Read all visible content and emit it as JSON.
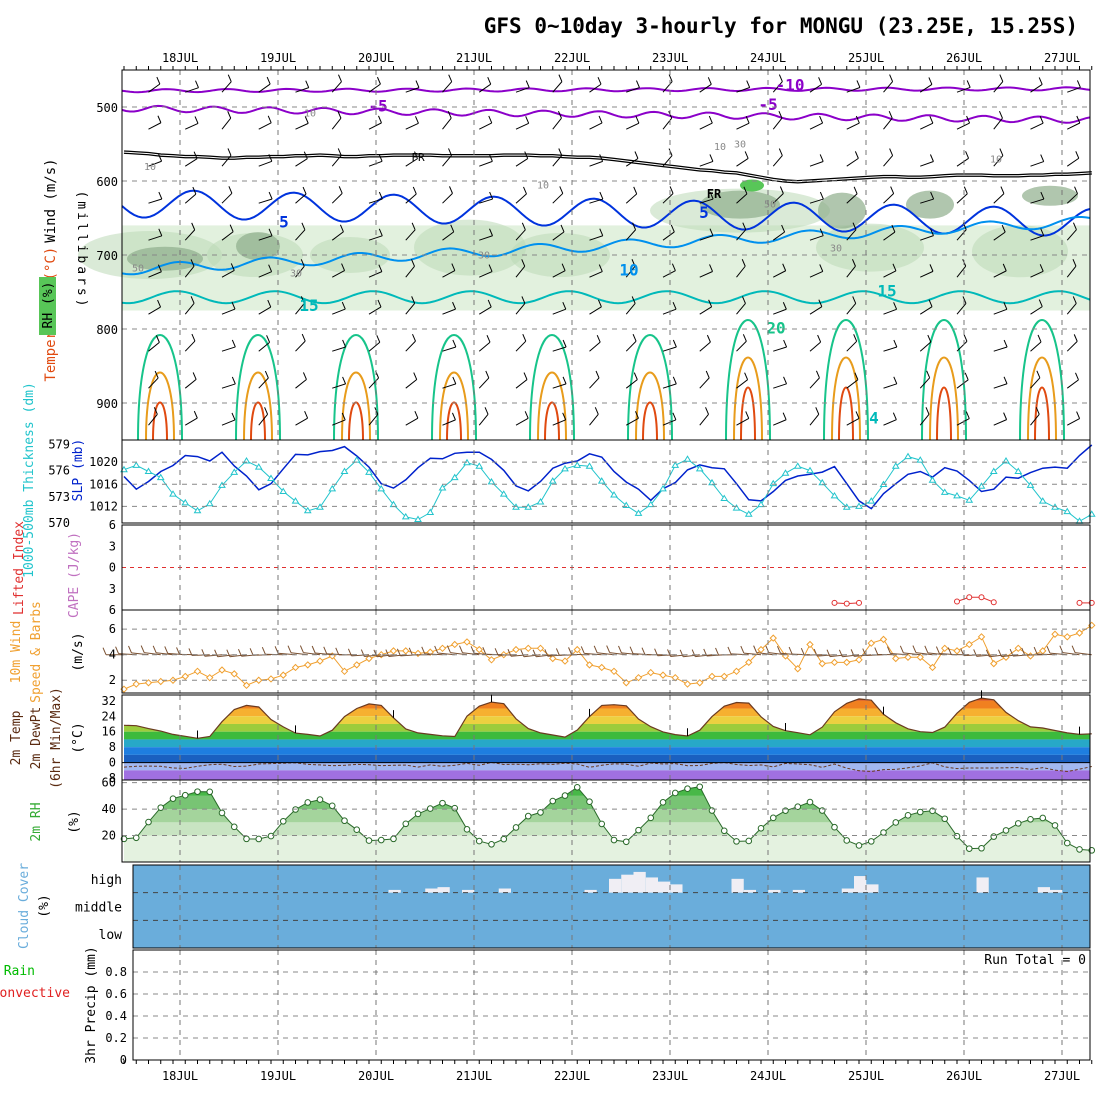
{
  "title": "GFS 0~10day 3-hourly for MONGU (23.25E, 15.25S)",
  "colors": {
    "wind_barb": "#000000",
    "rh_light": "#e2f1de",
    "rh_mid": "#bcd8b6",
    "rh_dark": "#8fae8c",
    "rh_high": "#58c658",
    "temp_purple": "#8b00c9",
    "temp_blue": "#0033dd",
    "temp_lightblue": "#0090ee",
    "temp_cyan": "#00b9b9",
    "temp_green": "#17c48a",
    "temp_orange": "#e89c1c",
    "temp_red": "#e04a10",
    "fr_line": "#000000",
    "slp": "#0022cc",
    "thickness": "#22c4cc",
    "lifted": "#e03030",
    "cape": "#c070c0",
    "wind10": "#f0a030",
    "windbarb10": "#7a5030",
    "rh2m": "#33aa33",
    "cloud": "#6aaddb",
    "precip": "#00bb00"
  },
  "chart_data": {
    "x_axis": {
      "day_labels": [
        "18JUL",
        "19JUL",
        "20JUL",
        "21JUL",
        "22JUL",
        "23JUL",
        "24JUL",
        "25JUL",
        "26JUL",
        "27JUL"
      ],
      "start": "17JUL 12Z",
      "step_hours": 3,
      "n_steps": 80
    },
    "panels": [
      {
        "id": "upper_air",
        "type": "contour",
        "ylabel_parts": [
          "Wind (m/s)",
          "Temperature (°C)",
          "RH (%)"
        ],
        "unit_label": "(millibars)",
        "y_ticks": [
          500,
          600,
          700,
          800,
          900
        ],
        "ylim": [
          450,
          950
        ],
        "temperature_contour_labels": [
          "-10",
          "-5",
          "-5",
          "5",
          "5",
          "10",
          "15",
          "15",
          "20",
          "4"
        ],
        "rh_contour_labels": [
          "10",
          "10",
          "10",
          "10",
          "30",
          "30",
          "30",
          "30",
          "50",
          "50",
          "10"
        ],
        "freezing_label": "FR",
        "freezing_level_mb": [
          561,
          562,
          563,
          565,
          566,
          567,
          567,
          568,
          569,
          569,
          568,
          568,
          567,
          567,
          566,
          566,
          565,
          566,
          567,
          567,
          566,
          566,
          565,
          565,
          565,
          565,
          566,
          566,
          566,
          566,
          566,
          565,
          565,
          565,
          566,
          566,
          567,
          568,
          568,
          569,
          571,
          573,
          575,
          577,
          579,
          581,
          583,
          585,
          586,
          588,
          589,
          592,
          595,
          598,
          600,
          601,
          600,
          599,
          598,
          597,
          596,
          595,
          594,
          594,
          595,
          595,
          594,
          593,
          592,
          592,
          592,
          593,
          593,
          593,
          592,
          592,
          591,
          591,
          590,
          589
        ]
      },
      {
        "id": "slp_thickness",
        "type": "line",
        "ylabel": "SLP (mb)",
        "ylabel2": "1000-500mb Thickness (dm)",
        "y_ticks": [
          1012,
          1016,
          1020
        ],
        "ylim": [
          1009,
          1024
        ],
        "y2_ticks": [
          570,
          573,
          576,
          579
        ],
        "y2lim": [
          570,
          579.5
        ],
        "series": [
          {
            "name": "SLP",
            "values": [
              1017.4,
              1015.1,
              1016.5,
              1018.3,
              1019.4,
              1021.2,
              1021.0,
              1020.2,
              1021.8,
              1019.3,
              1017.5,
              1015.0,
              1016.1,
              1018.8,
              1021.4,
              1021.3,
              1021.9,
              1022.1,
              1022.8,
              1021.1,
              1019.1,
              1016.1,
              1015.3,
              1016.8,
              1019.0,
              1020.7,
              1020.6,
              1021.6,
              1021.8,
              1021.8,
              1020.5,
              1018.5,
              1015.7,
              1014.8,
              1016.5,
              1018.9,
              1019.8,
              1020.2,
              1021.5,
              1020.9,
              1018.3,
              1016.4,
              1015.1,
              1013.1,
              1015.2,
              1016.3,
              1018.6,
              1019.5,
              1019.0,
              1018.8,
              1016.1,
              1013.2,
              1013.0,
              1014.7,
              1016.7,
              1017.5,
              1017.8,
              1018.2,
              1019.2,
              1016.1,
              1013.0,
              1011.6,
              1014.3,
              1016.1,
              1017.8,
              1018.3,
              1017.3,
              1019.0,
              1018.4,
              1016.7,
              1014.7,
              1015.1,
              1017.3,
              1017.1,
              1018.1,
              1018.9,
              1019.1,
              1018.9,
              1021.2,
              1023.1
            ]
          },
          {
            "name": "Thickness",
            "values": [
              576.1,
              576.6,
              575.9,
              575.2,
              573.3,
              572.3,
              571.4,
              572.2,
              574.3,
              575.8,
              577.1,
              576.4,
              575.1,
              573.6,
              572.5,
              571.4,
              571.8,
              573.9,
              575.9,
              577.2,
              575.8,
              573.9,
              572.1,
              570.7,
              570.4,
              571.2,
              574.0,
              575.2,
              576.9,
              576.5,
              574.7,
              573.3,
              571.8,
              571.8,
              572.4,
              574.8,
              576.2,
              576.6,
              576.5,
              574.8,
              573.2,
              572.0,
              571.1,
              572.1,
              573.9,
              576.6,
              577.3,
              576.2,
              574.6,
              572.8,
              571.7,
              571.0,
              572.1,
              574.5,
              575.7,
              576.5,
              576.0,
              574.6,
              573.1,
              571.8,
              571.9,
              572.5,
              574.4,
              576.5,
              577.6,
              577.2,
              574.9,
              573.5,
              573.1,
              572.6,
              574.2,
              575.9,
              577.1,
              575.9,
              574.3,
              572.5,
              571.8,
              571.3,
              570.2,
              571.0
            ]
          }
        ]
      },
      {
        "id": "lifted_cape",
        "type": "line",
        "ylabel": "Lifted Index",
        "ylabel2": "CAPE (J/kg)",
        "y_ticks": [
          -6,
          -3,
          0,
          3,
          6
        ],
        "ylim": [
          -6,
          6
        ],
        "zero_line": 0,
        "series": [
          {
            "name": "Lifted Index (visible positive excursions)",
            "segments": [
              {
                "start_index": 58,
                "values": [
                  5.0,
                  5.1,
                  5.0
                ]
              },
              {
                "start_index": 68,
                "values": [
                  4.8,
                  4.2,
                  4.2,
                  4.9
                ]
              },
              {
                "start_index": 78,
                "values": [
                  5.0,
                  5.0
                ]
              }
            ]
          }
        ]
      },
      {
        "id": "wind10m",
        "type": "line",
        "ylabel": "10m Wind",
        "ylabel2": "Speed & Barbs",
        "unit": "(m/s)",
        "y_ticks": [
          2,
          4,
          6
        ],
        "ylim": [
          1,
          7.5
        ],
        "series": [
          {
            "name": "10m Wind Speed",
            "values": [
              1.3,
              1.7,
              1.8,
              1.9,
              2.0,
              2.3,
              2.7,
              2.2,
              2.8,
              2.5,
              1.6,
              2.0,
              2.1,
              2.4,
              3.0,
              3.2,
              3.5,
              3.9,
              2.7,
              3.2,
              3.7,
              4.0,
              4.3,
              4.3,
              4.1,
              4.2,
              4.5,
              4.8,
              5.0,
              4.4,
              3.6,
              4.0,
              4.4,
              4.5,
              4.5,
              3.7,
              3.5,
              4.4,
              3.2,
              3.0,
              2.7,
              1.8,
              2.2,
              2.6,
              2.4,
              2.2,
              1.7,
              1.8,
              2.3,
              2.3,
              2.7,
              3.4,
              4.4,
              5.3,
              3.9,
              2.9,
              4.8,
              3.3,
              3.4,
              3.4,
              3.6,
              4.9,
              5.2,
              3.7,
              3.8,
              3.8,
              3.0,
              4.5,
              4.3,
              4.8,
              5.4,
              3.3,
              3.8,
              4.5,
              3.9,
              4.3,
              5.6,
              5.4,
              5.7,
              6.3
            ]
          }
        ]
      },
      {
        "id": "temp2m",
        "type": "area",
        "ylabel": "2m Temp",
        "ylabel2": "2m DewPt",
        "ylabel3": "(6hr Min/Max)",
        "unit": "(°C)",
        "y_ticks": [
          -8,
          0,
          8,
          16,
          24,
          32
        ],
        "ylim": [
          -9,
          35
        ],
        "series": [
          {
            "name": "2m Temp",
            "values": [
              19.3,
              19.1,
              17.6,
              16.3,
              14.6,
              13.6,
              12.6,
              13.5,
              21.2,
              27.5,
              29.6,
              28.8,
              22.3,
              18.5,
              15.3,
              14.6,
              13.8,
              16.8,
              23.8,
              28.0,
              30.4,
              29.6,
              23.2,
              17.4,
              15.4,
              14.6,
              13.9,
              13.5,
              24.1,
              29.2,
              31.3,
              30.5,
              22.7,
              17.6,
              15.4,
              14.3,
              13.2,
              16.9,
              23.8,
              29.6,
              30.0,
              29.4,
              22.6,
              18.6,
              15.9,
              14.5,
              13.8,
              16.8,
              23.8,
              29.2,
              31.1,
              30.8,
              23.7,
              18.7,
              16.5,
              15.5,
              14.4,
              18.4,
              26.3,
              30.7,
              33.0,
              32.3,
              25.0,
              20.6,
              17.5,
              16.0,
              15.6,
              18.4,
              25.6,
              31.2,
              33.4,
              32.5,
              26.0,
              21.7,
              18.5,
              17.9,
              16.6,
              15.4,
              14.6,
              14.9
            ]
          },
          {
            "name": "2m DewPt",
            "values": [
              -2.3,
              -1.9,
              -1.8,
              -1.9,
              -2.8,
              -3.0,
              -1.9,
              -1.1,
              -0.8,
              -2.0,
              -1.8,
              -0.7,
              -0.5,
              -0.3,
              -0.1,
              -0.9,
              -1.2,
              -1.6,
              -1.4,
              -0.9,
              -1.1,
              -1.6,
              -1.4,
              -1.3,
              -2.3,
              -1.2,
              -1.9,
              -1.4,
              -0.4,
              -1.4,
              0.1,
              -1.0,
              -0.8,
              -1.1,
              -0.6,
              -0.9,
              -0.3,
              -0.7,
              -2.4,
              -1.4,
              -0.6,
              -0.8,
              -1.9,
              -0.2,
              -0.7,
              -0.5,
              -1.6,
              -1.5,
              -0.4,
              0.0,
              -1.0,
              -1.5,
              -1.2,
              -2.2,
              -0.4,
              -0.7,
              -1.1,
              -2.5,
              -0.7,
              -2.9,
              -4.2,
              -4.6,
              -3.6,
              -3.5,
              -2.7,
              -1.7,
              -0.1,
              -2.2,
              -3.1,
              -2.8,
              -2.8,
              -2.8,
              -2.7,
              -2.6,
              -3.5,
              -2.6,
              -3.9,
              -4.6,
              -3.4,
              -2.0
            ]
          }
        ]
      },
      {
        "id": "rh2m",
        "type": "area",
        "ylabel": "2m RH",
        "unit": "(%)",
        "y_ticks": [
          20,
          40,
          60
        ],
        "ylim": [
          0,
          62
        ],
        "series": [
          {
            "name": "2m RH",
            "values": [
              17.5,
              18.3,
              30.2,
              41.1,
              47.9,
              50.5,
              53.2,
              53.1,
              37.1,
              26.6,
              17.5,
              17.4,
              19.6,
              30.8,
              39.7,
              45.0,
              47.2,
              42.5,
              31.2,
              24.4,
              16.2,
              16.6,
              17.5,
              28.9,
              36.4,
              40.4,
              44.5,
              40.7,
              24.7,
              15.8,
              13.4,
              17.3,
              26.1,
              34.7,
              37.5,
              46.1,
              50.2,
              56.5,
              45.6,
              28.8,
              16.6,
              15.3,
              24.1,
              33.4,
              45.1,
              52.2,
              55.4,
              56.9,
              38.9,
              23.6,
              15.6,
              15.9,
              25.5,
              33.4,
              38.8,
              41.8,
              45.3,
              38.9,
              26.3,
              16.3,
              12.5,
              15.6,
              22.3,
              29.9,
              35.3,
              37.8,
              38.7,
              32.7,
              19.5,
              10.1,
              10.4,
              19.2,
              23.9,
              29.2,
              32.3,
              33.3,
              27.7,
              14.3,
              9.5,
              8.8
            ]
          }
        ]
      },
      {
        "id": "cloud",
        "type": "bar",
        "ylabel": "Cloud Cover",
        "unit": "(%)",
        "levels": [
          "high",
          "middle",
          "low"
        ],
        "series": [
          {
            "name": "high cloud (% of step)",
            "values": [
              0,
              0,
              0,
              0,
              0,
              0,
              0,
              0,
              0,
              0,
              0,
              0,
              0,
              0,
              0,
              0,
              0,
              0,
              0,
              0,
              0,
              0,
              10,
              0,
              0,
              15,
              20,
              0,
              10,
              0,
              0,
              15,
              0,
              0,
              0,
              0,
              0,
              0,
              10,
              0,
              50,
              65,
              75,
              55,
              40,
              30,
              0,
              0,
              0,
              0,
              50,
              10,
              0,
              10,
              0,
              10,
              0,
              0,
              0,
              15,
              60,
              30,
              0,
              0,
              0,
              0,
              0,
              0,
              0,
              0,
              55,
              0,
              0,
              0,
              0,
              20,
              10,
              0,
              0,
              0
            ]
          }
        ]
      },
      {
        "id": "precip",
        "type": "bar",
        "ylabel": "3hr Precip (mm)",
        "ylabel2": "Total / Rain",
        "ylabel3": "Convective",
        "y_ticks": [
          0,
          0.2,
          0.4,
          0.6,
          0.8
        ],
        "ylim": [
          0,
          1
        ],
        "annotation": "Run Total = 0",
        "series": [
          {
            "name": "Total",
            "values": []
          }
        ]
      }
    ]
  }
}
